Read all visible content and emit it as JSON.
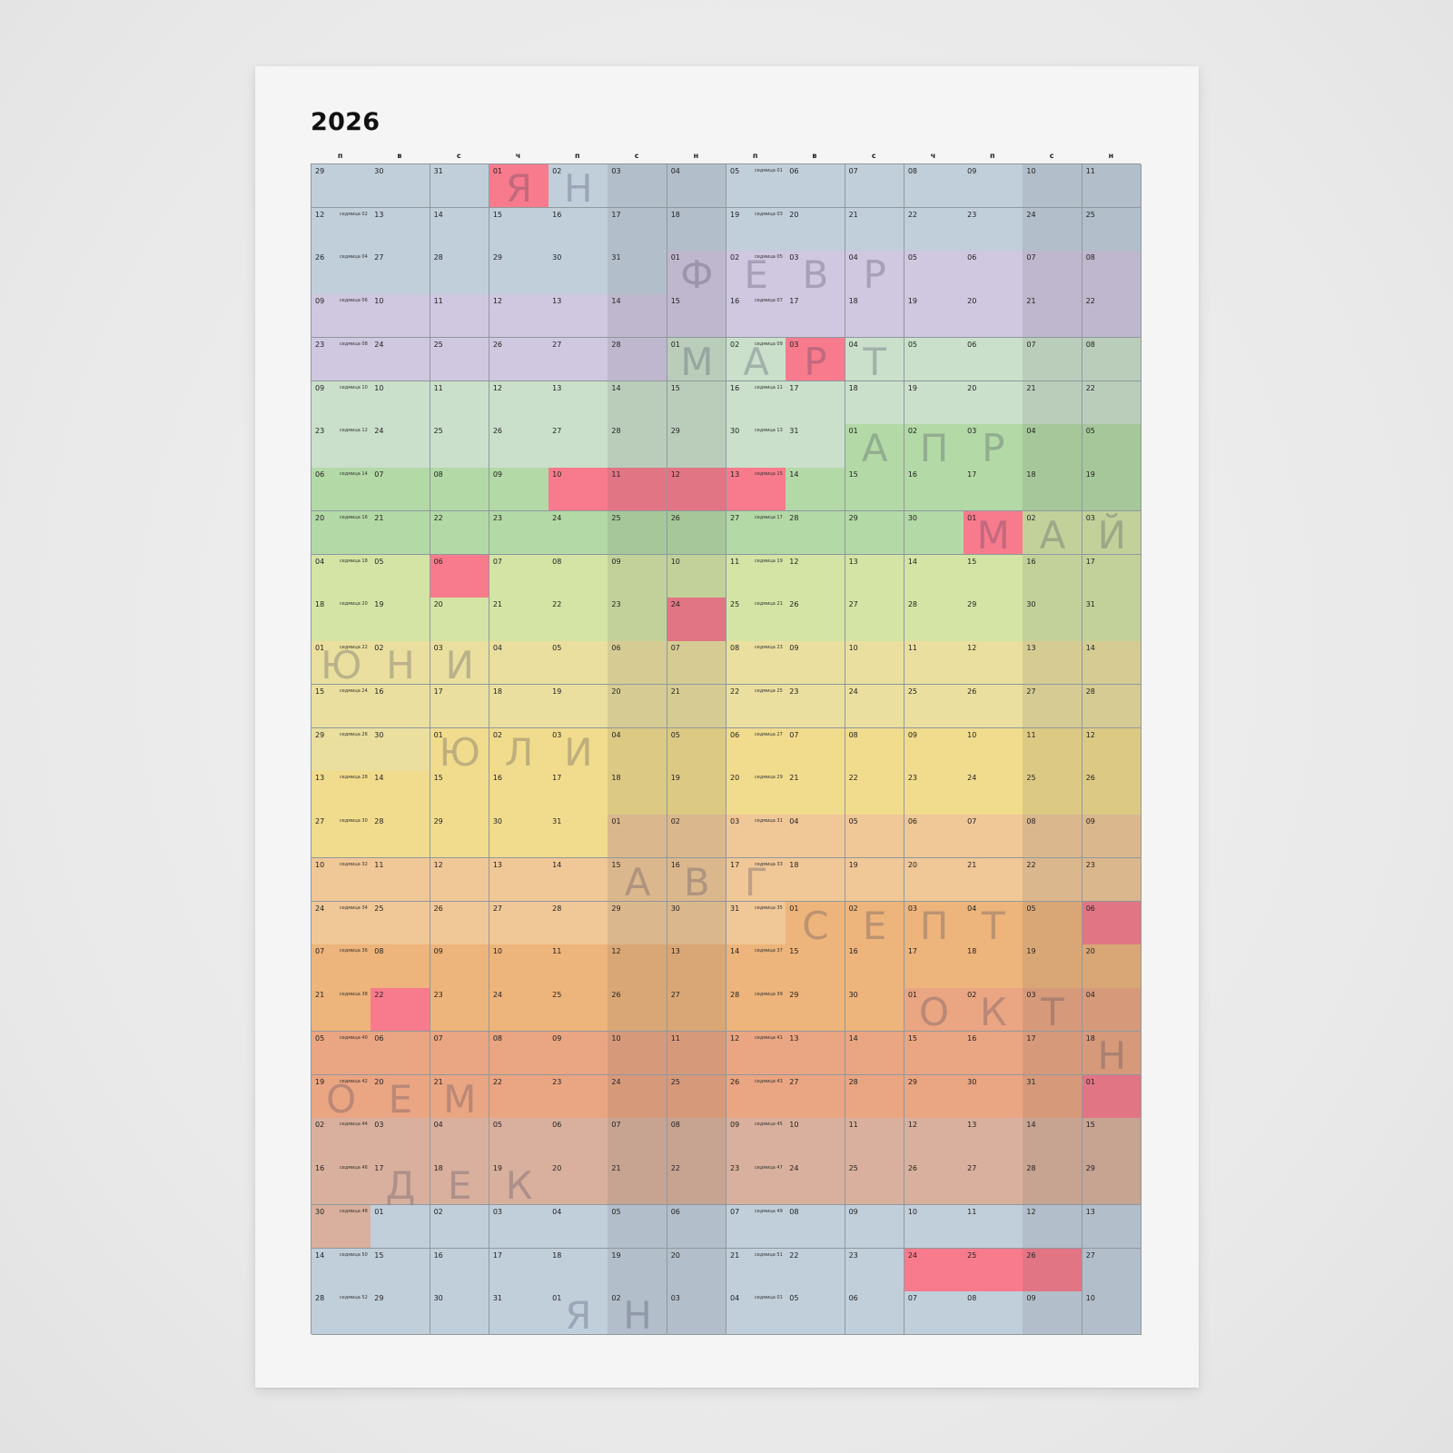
{
  "year": "2026",
  "weekdays": [
    "п",
    "в",
    "с",
    "ч",
    "п",
    "с",
    "н",
    "п",
    "в",
    "с",
    "ч",
    "п",
    "с",
    "н"
  ],
  "week_word": "седмица",
  "month_labels": {
    "0": "Я Н",
    "1": "Ф Е В Р",
    "2": "М А Р Т",
    "3": "А П Р",
    "4": "М А Й",
    "5": "Ю Н И",
    "6": "Ю Л И",
    "7": "А В Г",
    "8": "С Е П Т",
    "9": "О К Т",
    "10a": "Н",
    "10b": "О Е М",
    "11": "Д Е К",
    "12": "Я Н"
  },
  "colors": {
    "jan": "#c1cfdb",
    "feb": "#d0c7e0",
    "mar": "#cae0cb",
    "apr": "#b3d9a6",
    "may": "#d3e4a5",
    "jun": "#eadf9e",
    "jul": "#f1dc8d",
    "aug": "#f0c797",
    "sep": "#edb47b",
    "oct": "#eaa582",
    "nov": "#d9b09d",
    "dec": "#c1cfdb",
    "holiday": "#f77b8c",
    "weekend_shade": "rgba(70,70,70,0.12)",
    "grid_line": "#8f989e"
  },
  "holidays_2026": [
    "2026-01-01",
    "2026-03-03",
    "2026-04-10",
    "2026-04-11",
    "2026-04-12",
    "2026-04-13",
    "2026-05-01",
    "2026-05-06",
    "2026-05-24",
    "2026-09-06",
    "2026-09-22",
    "2026-11-01",
    "2026-12-24",
    "2026-12-25",
    "2026-12-26"
  ]
}
